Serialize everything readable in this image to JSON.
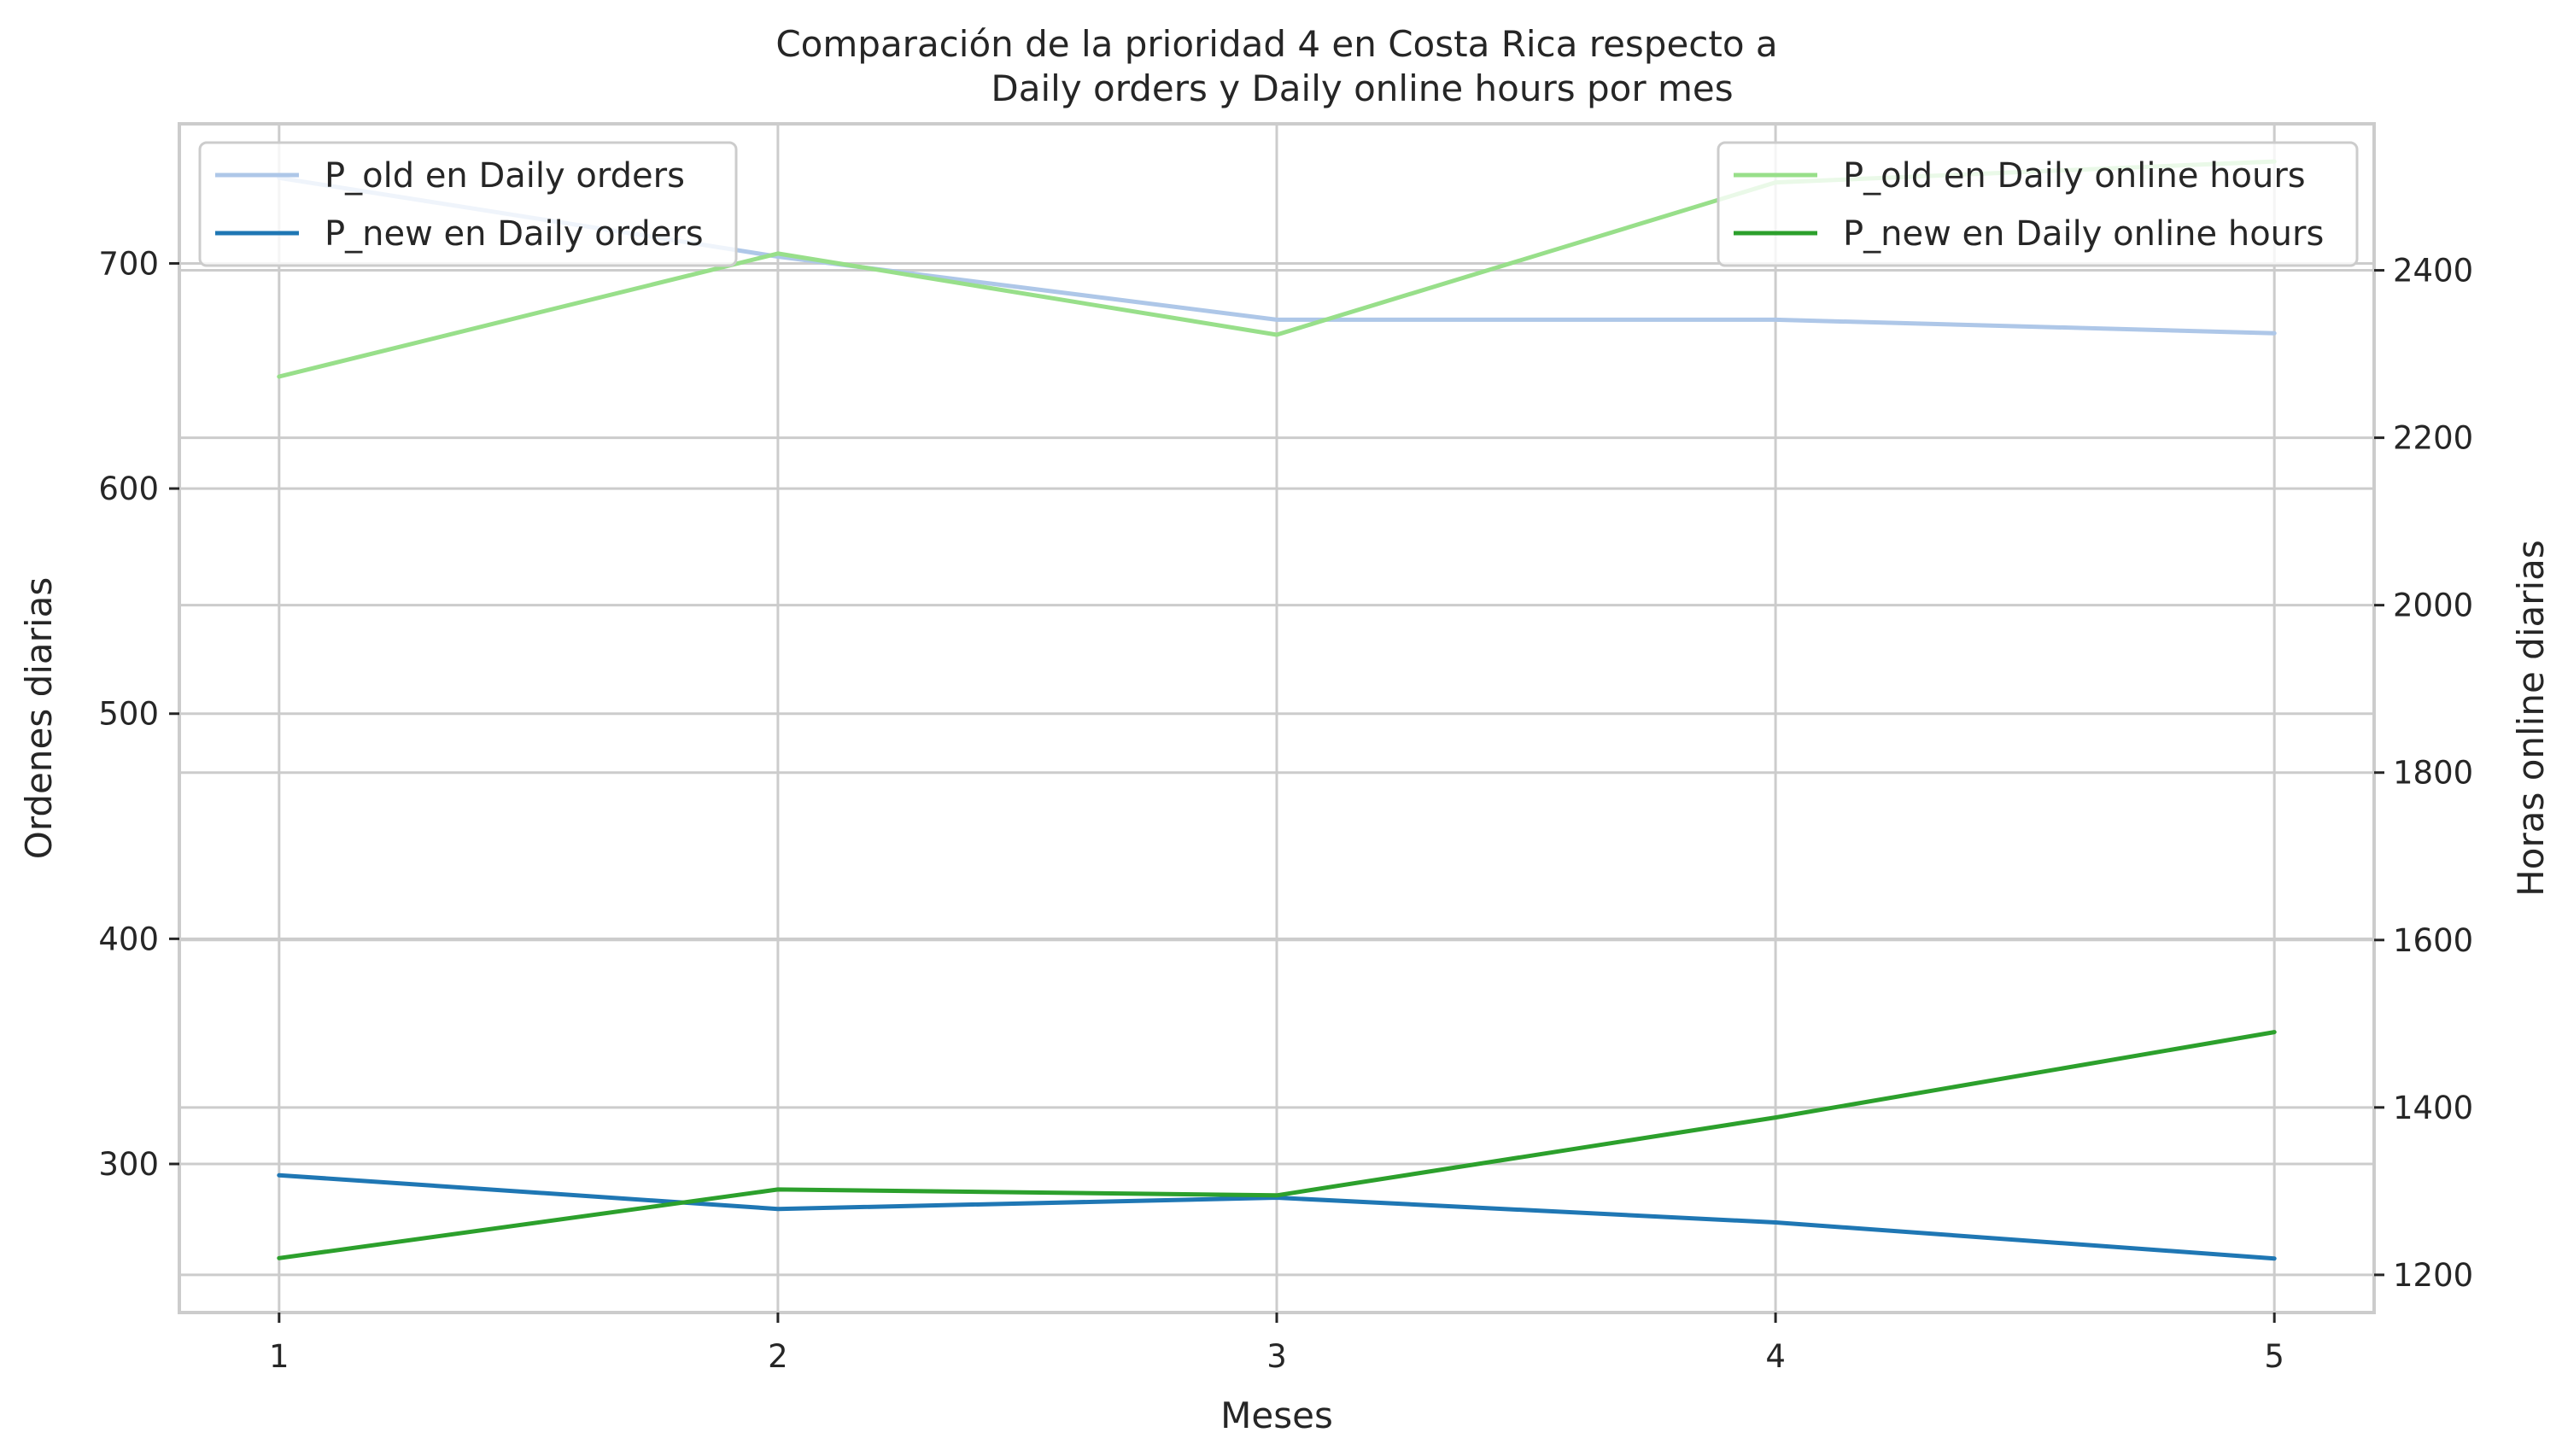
{
  "chart_data": {
    "type": "line",
    "title_line1": "Comparación de la prioridad 4 en Costa Rica respecto a",
    "title_line2": "Daily orders y Daily online hours por mes",
    "xlabel": "Meses",
    "ylabel_left": "Ordenes diarias",
    "ylabel_right": "Horas online diarias",
    "x": [
      1,
      2,
      3,
      4,
      5
    ],
    "xlim": [
      0.8,
      5.2
    ],
    "ylim_left": [
      234,
      762
    ],
    "ylim_right": [
      1155,
      2575
    ],
    "yticks_left": [
      300,
      400,
      500,
      600,
      700
    ],
    "yticks_right": [
      1200,
      1400,
      1600,
      1800,
      2000,
      2200,
      2400
    ],
    "grid": true,
    "series_left": [
      {
        "name": "P_old en Daily orders",
        "color": "#aec7e8",
        "values": [
          738,
          703,
          675,
          675,
          669
        ]
      },
      {
        "name": "P_new en Daily orders",
        "color": "#1f77b4",
        "values": [
          295,
          280,
          285,
          274,
          258
        ]
      }
    ],
    "series_right": [
      {
        "name": "P_old en Daily online hours",
        "color": "#98df8a",
        "values": [
          2273,
          2420,
          2323,
          2505,
          2530
        ]
      },
      {
        "name": "P_new en Daily online hours",
        "color": "#2ca02c",
        "values": [
          1220,
          1302,
          1295,
          1388,
          1490
        ]
      }
    ],
    "legend_left_placement": "upper-left",
    "legend_right_placement": "upper-right"
  }
}
